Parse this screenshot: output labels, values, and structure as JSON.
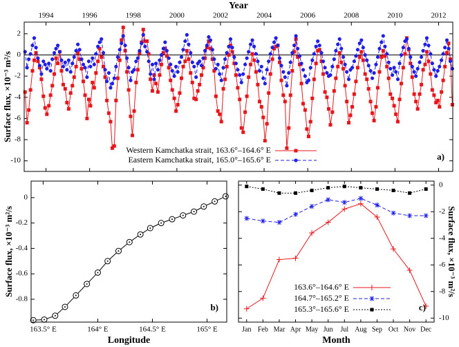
{
  "chart_data": [
    {
      "type": "line",
      "x_label": "Year",
      "xaxis_position": "top",
      "y_label": "Surface flux, ×10⁻³ m²/s",
      "annotation": "a)",
      "zero_line": true,
      "legend": "bottom",
      "xlim": [
        1993,
        2012.65
      ],
      "xticks": [
        1994,
        1996,
        1998,
        2000,
        2002,
        2004,
        2006,
        2008,
        2010,
        2012
      ],
      "ylim": [
        -11,
        3.1
      ],
      "yticks": [
        -10,
        -8,
        -6,
        -4,
        -2,
        0,
        2
      ],
      "x": [
        1993.04,
        1993.13,
        1993.21,
        1993.29,
        1993.38,
        1993.46,
        1993.54,
        1993.63,
        1993.71,
        1993.79,
        1993.88,
        1993.96,
        1994.04,
        1994.13,
        1994.21,
        1994.29,
        1994.38,
        1994.46,
        1994.54,
        1994.63,
        1994.71,
        1994.79,
        1994.88,
        1994.96,
        1995.04,
        1995.13,
        1995.21,
        1995.29,
        1995.38,
        1995.46,
        1995.54,
        1995.63,
        1995.71,
        1995.79,
        1995.88,
        1995.96,
        1996.04,
        1996.13,
        1996.21,
        1996.29,
        1996.38,
        1996.46,
        1996.54,
        1996.63,
        1996.71,
        1996.79,
        1996.88,
        1996.96,
        1997.04,
        1997.13,
        1997.21,
        1997.29,
        1997.38,
        1997.46,
        1997.54,
        1997.63,
        1997.71,
        1997.79,
        1997.88,
        1997.96,
        1998.04,
        1998.13,
        1998.21,
        1998.29,
        1998.38,
        1998.46,
        1998.54,
        1998.63,
        1998.71,
        1998.79,
        1998.88,
        1998.96,
        1999.04,
        1999.13,
        1999.21,
        1999.29,
        1999.38,
        1999.46,
        1999.54,
        1999.63,
        1999.71,
        1999.79,
        1999.88,
        1999.96,
        2000.04,
        2000.13,
        2000.21,
        2000.29,
        2000.38,
        2000.46,
        2000.54,
        2000.63,
        2000.71,
        2000.79,
        2000.88,
        2000.96,
        2001.04,
        2001.13,
        2001.21,
        2001.29,
        2001.38,
        2001.46,
        2001.54,
        2001.63,
        2001.71,
        2001.79,
        2001.88,
        2001.96,
        2002.04,
        2002.13,
        2002.21,
        2002.29,
        2002.38,
        2002.46,
        2002.54,
        2002.63,
        2002.71,
        2002.79,
        2002.88,
        2002.96,
        2003.04,
        2003.13,
        2003.21,
        2003.29,
        2003.38,
        2003.46,
        2003.54,
        2003.63,
        2003.71,
        2003.79,
        2003.88,
        2003.96,
        2004.04,
        2004.13,
        2004.21,
        2004.29,
        2004.38,
        2004.46,
        2004.54,
        2004.63,
        2004.71,
        2004.79,
        2004.88,
        2004.96,
        2005.04,
        2005.13,
        2005.21,
        2005.29,
        2005.38,
        2005.46,
        2005.54,
        2005.63,
        2005.71,
        2005.79,
        2005.88,
        2005.96,
        2006.04,
        2006.13,
        2006.21,
        2006.29,
        2006.38,
        2006.46,
        2006.54,
        2006.63,
        2006.71,
        2006.79,
        2006.88,
        2006.96,
        2007.04,
        2007.13,
        2007.21,
        2007.29,
        2007.38,
        2007.46,
        2007.54,
        2007.63,
        2007.71,
        2007.79,
        2007.88,
        2007.96,
        2008.04,
        2008.13,
        2008.21,
        2008.29,
        2008.38,
        2008.46,
        2008.54,
        2008.63,
        2008.71,
        2008.79,
        2008.88,
        2008.96,
        2009.04,
        2009.13,
        2009.21,
        2009.29,
        2009.38,
        2009.46,
        2009.54,
        2009.63,
        2009.71,
        2009.79,
        2009.88,
        2009.96,
        2010.04,
        2010.13,
        2010.21,
        2010.29,
        2010.38,
        2010.46,
        2010.54,
        2010.63,
        2010.71,
        2010.79,
        2010.88,
        2010.96,
        2011.04,
        2011.13,
        2011.21,
        2011.29,
        2011.38,
        2011.46,
        2011.54,
        2011.63,
        2011.71,
        2011.79,
        2011.88,
        2011.96,
        2012.04,
        2012.13,
        2012.21,
        2012.29,
        2012.38,
        2012.46,
        2012.54,
        2012.63
      ],
      "series": [
        {
          "name": "Western Kamchatka strait, 163.6°–164.6° E",
          "color": "#e8161b",
          "marker": "square",
          "dash": "solid",
          "values": [
            -3.5,
            -6.4,
            -5.2,
            -3.3,
            -1.5,
            -0.5,
            0.2,
            -0.6,
            -1.2,
            -2.3,
            -3.9,
            -5.0,
            -5.6,
            -4.8,
            -3.8,
            -2.9,
            -1.8,
            -0.3,
            -0.8,
            0.3,
            -1.5,
            -2.8,
            -3.2,
            -4.5,
            -5.1,
            -3.6,
            -2.9,
            -2.1,
            -1.1,
            0.2,
            -0.4,
            -1.3,
            -2.5,
            -3.8,
            -6.0,
            -4.2,
            -4.8,
            -2.6,
            -3.1,
            -1.7,
            -0.6,
            0.6,
            -0.2,
            -1.1,
            -2.1,
            -4.3,
            -5.5,
            -6.3,
            -8.8,
            -8.6,
            -4.3,
            -2.2,
            -0.5,
            1.4,
            2.6,
            0.4,
            -1.6,
            -3.3,
            -5.8,
            -7.6,
            -5.3,
            -2.6,
            -1.4,
            0.2,
            1.2,
            2.4,
            1.3,
            1.3,
            0.1,
            -2.3,
            -3.4,
            -1.9,
            -2.7,
            -3.5,
            -1.9,
            -0.9,
            0.2,
            0.6,
            -0.1,
            -1.2,
            -2.4,
            -3.3,
            -4.1,
            -5.3,
            -4.7,
            -3.6,
            -2.2,
            -1.1,
            -0.6,
            0.4,
            -0.4,
            -1.7,
            -2.6,
            -4.1,
            -4.2,
            -3.4,
            -2.8,
            -1.9,
            -1.2,
            -0.3,
            0.7,
            1.3,
            0.6,
            -0.4,
            -1.5,
            -3.9,
            -5.3,
            -5.6,
            -6.3,
            -3.2,
            -2.3,
            -1.1,
            0.0,
            0.9,
            0.3,
            -0.8,
            -1.9,
            -3.1,
            -4.2,
            -6.9,
            -7.3,
            -5.4,
            -3.9,
            -2.1,
            -0.9,
            0.1,
            -0.5,
            -1.6,
            -2.8,
            -4.4,
            -4.9,
            -5.9,
            -8.1,
            -6.5,
            -3.6,
            -1.8,
            -0.4,
            0.6,
            0.8,
            0.9,
            -0.7,
            -2.4,
            -3.8,
            -4.4,
            -8.8,
            -6.9,
            -3.8,
            -1.5,
            0.3,
            1.5,
            -0.2,
            -0.9,
            -2.7,
            -4.6,
            -5.2,
            -7.0,
            -7.7,
            -6.3,
            -4.1,
            -2.3,
            -0.8,
            0.4,
            0.5,
            -0.6,
            -1.8,
            -3.5,
            -4.0,
            -5.1,
            -6.6,
            -5.4,
            -3.4,
            -2.2,
            -1.1,
            0.2,
            -0.7,
            -1.3,
            -2.9,
            -4.4,
            -6.4,
            -5.7,
            -4.9,
            -3.7,
            -2.5,
            -1.2,
            -0.2,
            0.3,
            -0.5,
            -1.8,
            -2.3,
            -3.2,
            -4.4,
            -5.5,
            -6.2,
            -4.9,
            -3.1,
            -1.6,
            -0.2,
            0.4,
            -0.1,
            -1.1,
            -2.2,
            -3.7,
            -4.1,
            -4.8,
            -5.6,
            -6.3,
            -4.2,
            -2.7,
            -1.2,
            0.1,
            1.6,
            0.5,
            -0.8,
            -2.1,
            -3.7,
            -4.4,
            -5.1,
            -3.7,
            -2.8,
            -1.4,
            -0.9,
            0.3,
            -0.6,
            -1.8,
            -3.3,
            -3.8,
            -4.5,
            -4.3,
            -4.9,
            -3.5,
            -2.4,
            -1.1,
            0.2,
            1.1,
            -0.4,
            -4.7
          ]
        },
        {
          "name": "Eastern Kamchatka strait, 165.0°–165.6° E",
          "color": "#1f1fe6",
          "marker": "circle",
          "dash": "dashed",
          "values": [
            0.3,
            -1.2,
            -0.4,
            0.1,
            0.9,
            1.6,
            0.7,
            -0.3,
            -1.0,
            -1.8,
            -0.6,
            -0.9,
            -1.3,
            -0.8,
            -1.5,
            -0.4,
            0.2,
            0.6,
            0.9,
            0.3,
            -0.5,
            -1.1,
            -0.7,
            -1.4,
            -0.5,
            -1.6,
            -0.8,
            -0.2,
            0.4,
            1.0,
            0.5,
            -0.4,
            -0.9,
            -1.2,
            -2.1,
            -0.6,
            -1.1,
            -0.3,
            -0.9,
            0.1,
            0.8,
            1.2,
            1.5,
            0.2,
            -1.4,
            -2.5,
            -1.7,
            -3.1,
            -2.7,
            -2.2,
            -1.1,
            -0.2,
            0.5,
            1.1,
            1.8,
            0.9,
            -0.3,
            -1.2,
            -2.4,
            -1.6,
            -1.4,
            -0.6,
            -0.3,
            0.4,
            1.1,
            1.9,
            0.8,
            0.3,
            -0.6,
            -1.8,
            -0.9,
            -2.3,
            -0.8,
            -1.4,
            -0.5,
            0.0,
            0.6,
            1.2,
            0.4,
            -0.3,
            -0.9,
            -1.5,
            -2.0,
            -1.1,
            -1.6,
            -0.7,
            -0.2,
            0.5,
            1.3,
            1.9,
            1.0,
            0.2,
            -0.7,
            -1.1,
            -2.1,
            -0.8,
            -0.6,
            -1.0,
            -0.3,
            0.4,
            0.9,
            1.7,
            1.4,
            0.5,
            -0.4,
            -1.3,
            -0.9,
            -1.8,
            -2.4,
            -1.2,
            -0.4,
            0.2,
            0.8,
            1.5,
            0.7,
            -0.2,
            -0.8,
            -1.4,
            -1.9,
            -2.6,
            -1.8,
            -0.9,
            -0.3,
            0.3,
            1.0,
            1.4,
            0.8,
            0.1,
            -0.6,
            -1.5,
            -1.1,
            -2.2,
            -2.7,
            -1.4,
            -0.6,
            0.1,
            0.7,
            1.2,
            1.6,
            0.9,
            -0.3,
            -1.0,
            -1.6,
            -2.1,
            -2.9,
            -1.7,
            -0.7,
            0.2,
            0.9,
            1.8,
            0.6,
            -0.1,
            -0.8,
            -1.4,
            -2.0,
            -2.6,
            -2.4,
            -1.2,
            -0.5,
            0.1,
            0.8,
            1.3,
            0.9,
            0.2,
            -0.6,
            -1.2,
            -1.7,
            -2.0,
            -1.9,
            -1.1,
            -0.4,
            0.4,
            1.0,
            1.5,
            0.6,
            -0.2,
            -0.9,
            -1.6,
            -2.3,
            -1.4,
            -1.2,
            -0.6,
            -0.1,
            0.5,
            1.1,
            1.4,
            0.7,
            0.0,
            -0.5,
            -1.0,
            -1.5,
            -2.2,
            -1.7,
            -0.9,
            -0.2,
            0.6,
            1.2,
            1.8,
            0.8,
            0.1,
            -0.7,
            -1.3,
            -1.9,
            -1.2,
            -1.6,
            -2.3,
            -0.8,
            0.0,
            0.7,
            1.3,
            1.5,
            0.6,
            -0.2,
            -1.1,
            -1.6,
            -2.0,
            -1.3,
            -0.7,
            -0.2,
            0.4,
            1.0,
            1.6,
            0.9,
            0.1,
            -0.8,
            -1.4,
            -2.0,
            -1.5,
            -1.1,
            -0.5,
            0.1,
            0.7,
            1.4,
            0.6,
            -0.6,
            -1.3
          ]
        }
      ]
    },
    {
      "type": "line",
      "x_label": "Longitude",
      "y_label": "Surface flux, ×10⁻³ m²/s",
      "annotation": "b)",
      "xlim": [
        163.39,
        165.18
      ],
      "xticks": [
        {
          "value": 163.5,
          "label": "163.5° E"
        },
        {
          "value": 164,
          "label": "164° E"
        },
        {
          "value": 164.5,
          "label": "164.5° E"
        },
        {
          "value": 165,
          "label": "165° E"
        }
      ],
      "ylim": [
        -0.98,
        0.13
      ],
      "yticks": [
        -0.8,
        -0.6,
        -0.4,
        -0.2,
        0
      ],
      "x": [
        163.41,
        163.51,
        163.61,
        163.7,
        163.8,
        163.9,
        164.0,
        164.09,
        164.19,
        164.29,
        164.39,
        164.48,
        164.58,
        164.68,
        164.78,
        164.88,
        164.97,
        165.07,
        165.17
      ],
      "series": [
        {
          "color": "#000000",
          "marker": "circle-dot",
          "dash": "solid",
          "values": [
            -0.965,
            -0.96,
            -0.93,
            -0.86,
            -0.77,
            -0.68,
            -0.59,
            -0.5,
            -0.42,
            -0.35,
            -0.29,
            -0.24,
            -0.2,
            -0.17,
            -0.14,
            -0.11,
            -0.07,
            -0.03,
            0.01
          ]
        }
      ]
    },
    {
      "type": "line",
      "x_label": "Month",
      "yaxis_position": "right",
      "y_label": "Surface flux, ×10⁻³ m²/s",
      "annotation": "c)",
      "legend": "bottom-left",
      "categories": [
        "Jan",
        "Feb",
        "Mar",
        "Apr",
        "May",
        "Jun",
        "Jul",
        "Aug",
        "Sep",
        "Oct",
        "Nov",
        "Dec"
      ],
      "ylim": [
        -10.3,
        0.3
      ],
      "yticks": [
        -10,
        -8,
        -6,
        -4,
        -2,
        0
      ],
      "series": [
        {
          "name": "163.6°–164.6° E",
          "color": "#e8161b",
          "marker": "plus",
          "dash": "solid",
          "values": [
            -9.3,
            -8.5,
            -5.6,
            -5.5,
            -3.6,
            -2.8,
            -1.8,
            -1.4,
            -2.4,
            -4.8,
            -6.4,
            -9.1
          ]
        },
        {
          "name": "164.7°–165.2° E",
          "color": "#1f1fe6",
          "marker": "asterisk",
          "dash": "dashed",
          "values": [
            -2.5,
            -2.7,
            -2.8,
            -2.2,
            -1.6,
            -1.1,
            -1.3,
            -1.0,
            -1.5,
            -2.1,
            -2.3,
            -2.3
          ]
        },
        {
          "name": "165.3°–165.6° E",
          "color": "#000000",
          "marker": "square",
          "dash": "dotted",
          "values": [
            -0.1,
            -0.3,
            -0.6,
            -0.6,
            -0.4,
            -0.2,
            -0.1,
            -0.2,
            -0.3,
            -0.4,
            -0.6,
            -0.3
          ]
        }
      ]
    }
  ]
}
